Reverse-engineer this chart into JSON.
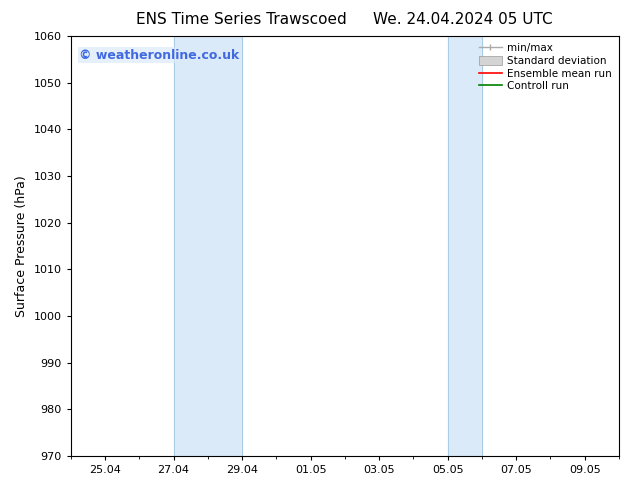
{
  "title_left": "ENS Time Series Trawscoed",
  "title_right": "We. 24.04.2024 05 UTC",
  "ylabel": "Surface Pressure (hPa)",
  "ylim": [
    970,
    1060
  ],
  "yticks": [
    970,
    980,
    990,
    1000,
    1010,
    1020,
    1030,
    1040,
    1050,
    1060
  ],
  "xlim": [
    0,
    15.5
  ],
  "x_num_days": 15.5,
  "xtick_labels": [
    "25.04",
    "27.04",
    "29.04",
    "01.05",
    "03.05",
    "05.05",
    "07.05",
    "09.05"
  ],
  "xtick_positions_days": [
    1,
    3,
    5,
    7,
    9,
    11,
    13,
    15
  ],
  "shaded_regions": [
    {
      "x_start_days": 3,
      "x_end_days": 5,
      "color": "#daeaf8"
    },
    {
      "x_start_days": 11,
      "x_end_days": 12,
      "color": "#daeaf8"
    }
  ],
  "shaded_border_color": "#a8cce4",
  "watermark_text": "© weatheronline.co.uk",
  "watermark_color": "#4169E1",
  "watermark_fontsize": 9,
  "background_color": "#ffffff",
  "legend_labels": [
    "min/max",
    "Standard deviation",
    "Ensemble mean run",
    "Controll run"
  ],
  "legend_colors_line": [
    "#aaaaaa",
    "#bbbbbb",
    "#ff0000",
    "#008000"
  ],
  "title_fontsize": 11,
  "axis_fontsize": 9,
  "tick_fontsize": 8
}
